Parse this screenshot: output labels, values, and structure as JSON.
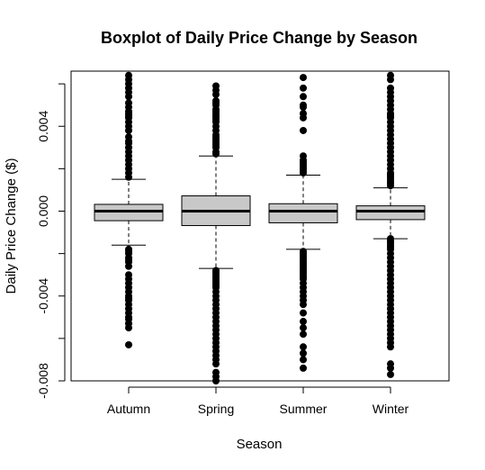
{
  "chart_data": {
    "type": "boxplot",
    "title": "Boxplot of Daily Price Change by Season",
    "xlabel": "Season",
    "ylabel": "Daily Price Change ($)",
    "ylim": [
      -0.008,
      0.0066
    ],
    "y_ticks": [
      -0.008,
      -0.006,
      -0.004,
      -0.002,
      0,
      0.002,
      0.004,
      0.006
    ],
    "y_tick_labels": [
      "-0.008",
      "",
      "-0.004",
      "",
      "0.000",
      "",
      "0.004",
      ""
    ],
    "grid": false,
    "legend": "none",
    "box_fill": "#c8c8c8",
    "categories": [
      "Autumn",
      "Spring",
      "Summer",
      "Winter"
    ],
    "boxes": [
      {
        "name": "Autumn",
        "whisker_low": -0.0016,
        "q1": -0.00045,
        "median": 0.0,
        "q3": 0.00032,
        "whisker_high": 0.0015,
        "outliers": [
          0.0064,
          0.0062,
          0.006,
          0.0058,
          0.0056,
          0.0054,
          0.0051,
          0.0049,
          0.0047,
          0.0046,
          0.0045,
          0.0044,
          0.0042,
          0.004,
          0.0038,
          0.0035,
          0.0033,
          0.0032,
          0.003,
          0.0028,
          0.0026,
          0.0024,
          0.0022,
          0.002,
          0.0018,
          0.0016,
          -0.0018,
          -0.0019,
          -0.002,
          -0.0022,
          -0.0023,
          -0.0024,
          -0.0026,
          -0.003,
          -0.0032,
          -0.0034,
          -0.0036,
          -0.0038,
          -0.004,
          -0.0041,
          -0.0042,
          -0.0044,
          -0.0046,
          -0.0048,
          -0.005,
          -0.0051,
          -0.0053,
          -0.0055,
          -0.0063
        ]
      },
      {
        "name": "Spring",
        "whisker_low": -0.0027,
        "q1": -0.00068,
        "median": 0.0,
        "q3": 0.00072,
        "whisker_high": 0.0026,
        "outliers": [
          0.0059,
          0.0057,
          0.0055,
          0.0052,
          0.0051,
          0.005,
          0.0048,
          0.0047,
          0.0046,
          0.0045,
          0.0044,
          0.0043,
          0.0042,
          0.004,
          0.0038,
          0.0036,
          0.0035,
          0.0034,
          0.0033,
          0.0032,
          0.0031,
          0.003,
          0.0028,
          0.0027,
          -0.0028,
          -0.0029,
          -0.003,
          -0.0031,
          -0.0032,
          -0.0033,
          -0.0034,
          -0.0035,
          -0.0036,
          -0.0038,
          -0.004,
          -0.0042,
          -0.0044,
          -0.0046,
          -0.0048,
          -0.005,
          -0.0052,
          -0.0054,
          -0.0056,
          -0.0058,
          -0.006,
          -0.0062,
          -0.0064,
          -0.0066,
          -0.0068,
          -0.007,
          -0.0072,
          -0.0076,
          -0.0078,
          -0.008
        ]
      },
      {
        "name": "Summer",
        "whisker_low": -0.0018,
        "q1": -0.00055,
        "median": 0.0,
        "q3": 0.00035,
        "whisker_high": 0.0017,
        "outliers": [
          0.0063,
          0.0058,
          0.0054,
          0.005,
          0.0049,
          0.0046,
          0.0044,
          0.0038,
          0.0026,
          0.0024,
          0.0023,
          0.0022,
          0.0021,
          0.002,
          0.0019,
          0.0018,
          -0.0019,
          -0.002,
          -0.0021,
          -0.0022,
          -0.0023,
          -0.0024,
          -0.0025,
          -0.0026,
          -0.0027,
          -0.0028,
          -0.0029,
          -0.003,
          -0.0031,
          -0.0032,
          -0.0034,
          -0.0036,
          -0.0038,
          -0.004,
          -0.0042,
          -0.0044,
          -0.0048,
          -0.0052,
          -0.0055,
          -0.0058,
          -0.0064,
          -0.0067,
          -0.007,
          -0.0074
        ]
      },
      {
        "name": "Winter",
        "whisker_low": -0.0013,
        "q1": -0.0004,
        "median": 0.0,
        "q3": 0.00025,
        "whisker_high": 0.0011,
        "outliers": [
          0.0064,
          0.0062,
          0.0058,
          0.0056,
          0.0054,
          0.0052,
          0.005,
          0.0048,
          0.0046,
          0.0045,
          0.0044,
          0.0042,
          0.004,
          0.0038,
          0.0036,
          0.0034,
          0.0032,
          0.003,
          0.0028,
          0.0026,
          0.0024,
          0.0022,
          0.002,
          0.0018,
          0.0017,
          0.0016,
          0.0015,
          0.0014,
          0.0013,
          0.0012,
          -0.0013,
          -0.0014,
          -0.0015,
          -0.0016,
          -0.0017,
          -0.0018,
          -0.002,
          -0.0022,
          -0.0024,
          -0.0026,
          -0.0028,
          -0.003,
          -0.0032,
          -0.0034,
          -0.0036,
          -0.0038,
          -0.004,
          -0.0042,
          -0.0044,
          -0.0046,
          -0.0048,
          -0.005,
          -0.0052,
          -0.0054,
          -0.0056,
          -0.0058,
          -0.006,
          -0.0062,
          -0.0064,
          -0.0072,
          -0.0074,
          -0.0077
        ]
      }
    ]
  }
}
